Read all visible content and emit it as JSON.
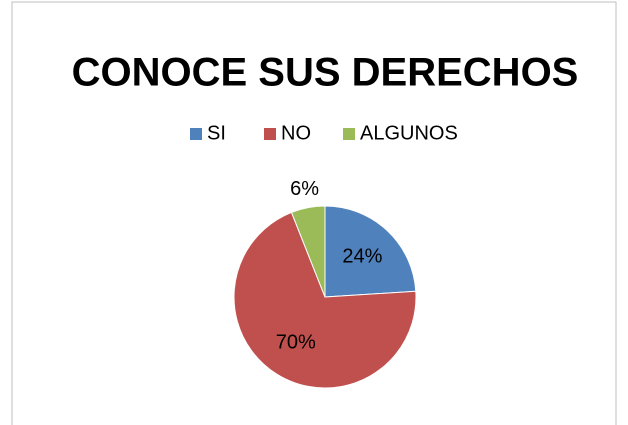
{
  "chart_data": {
    "type": "pie",
    "title": "CONOCE SUS DERECHOS",
    "categories": [
      "SI",
      "NO",
      "ALGUNOS"
    ],
    "values": [
      24,
      70,
      6
    ],
    "value_labels": [
      "24%",
      "70%",
      "6%"
    ],
    "colors": [
      "#4f81bd",
      "#c0504d",
      "#9bbb59"
    ],
    "legend": "top"
  }
}
